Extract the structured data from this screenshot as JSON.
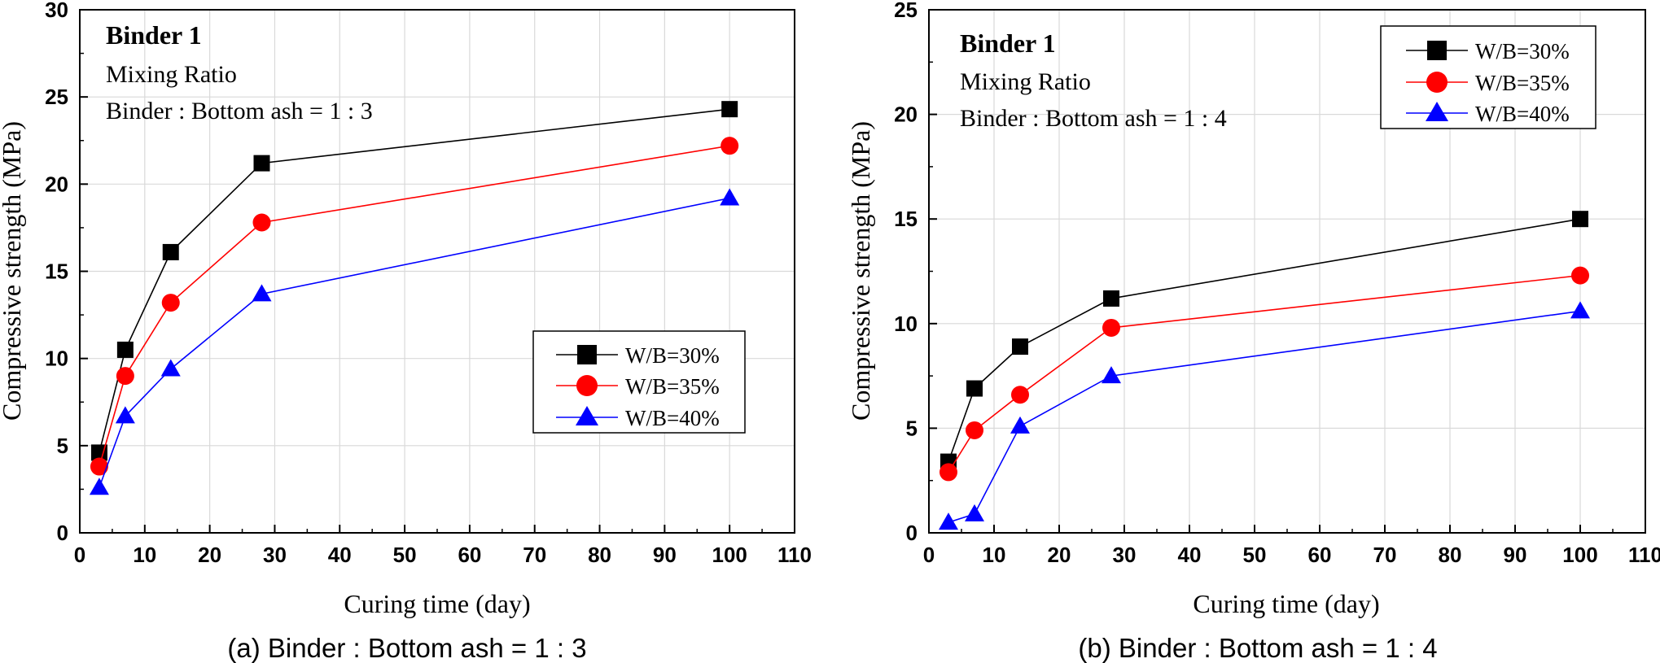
{
  "colors": {
    "series_30": "#000000",
    "series_35": "#ff0000",
    "series_40": "#0000ff",
    "grid": "#d9d9d9",
    "axis": "#000000"
  },
  "chart_data": [
    {
      "type": "line",
      "panel_caption": "(a) Binder : Bottom ash = 1 : 3",
      "annotation": {
        "title": "Binder 1",
        "line1": "Mixing Ratio",
        "line2": "Binder : Bottom ash = 1 : 3"
      },
      "xlabel": "Curing time (day)",
      "ylabel": "Compressive strength (MPa)",
      "xlim": [
        0,
        110
      ],
      "ylim": [
        0,
        30
      ],
      "xticks": [
        0,
        10,
        20,
        30,
        40,
        50,
        60,
        70,
        80,
        90,
        100,
        110
      ],
      "yticks": [
        0,
        5,
        10,
        15,
        20,
        25,
        30
      ],
      "grid": true,
      "legend_position": "middle-right",
      "x": [
        3,
        7,
        14,
        28,
        100
      ],
      "series": [
        {
          "name": "W/B=30%",
          "marker": "square",
          "color": "#000000",
          "values": [
            4.6,
            10.5,
            16.1,
            21.2,
            24.3
          ]
        },
        {
          "name": "W/B=35%",
          "marker": "circle",
          "color": "#ff0000",
          "values": [
            3.8,
            9.0,
            13.2,
            17.8,
            22.2
          ]
        },
        {
          "name": "W/B=40%",
          "marker": "triangle",
          "color": "#0000ff",
          "values": [
            2.6,
            6.7,
            9.4,
            13.7,
            19.2
          ]
        }
      ]
    },
    {
      "type": "line",
      "panel_caption": "(b) Binder : Bottom ash = 1 : 4",
      "annotation": {
        "title": "Binder 1",
        "line1": "Mixing Ratio",
        "line2": "Binder : Bottom ash = 1 : 4"
      },
      "xlabel": "Curing time (day)",
      "ylabel": "Compressive strength (MPa)",
      "xlim": [
        0,
        110
      ],
      "ylim": [
        0,
        25
      ],
      "xticks": [
        0,
        10,
        20,
        30,
        40,
        50,
        60,
        70,
        80,
        90,
        100,
        110
      ],
      "yticks": [
        0,
        5,
        10,
        15,
        20,
        25
      ],
      "grid": true,
      "legend_position": "top-right",
      "x": [
        3,
        7,
        14,
        28,
        100
      ],
      "series": [
        {
          "name": "W/B=30%",
          "marker": "square",
          "color": "#000000",
          "values": [
            3.4,
            6.9,
            8.9,
            11.2,
            15.0
          ]
        },
        {
          "name": "W/B=35%",
          "marker": "circle",
          "color": "#ff0000",
          "values": [
            2.9,
            4.9,
            6.6,
            9.8,
            12.3
          ]
        },
        {
          "name": "W/B=40%",
          "marker": "triangle",
          "color": "#0000ff",
          "values": [
            0.5,
            0.9,
            5.1,
            7.5,
            10.6
          ]
        }
      ]
    }
  ]
}
